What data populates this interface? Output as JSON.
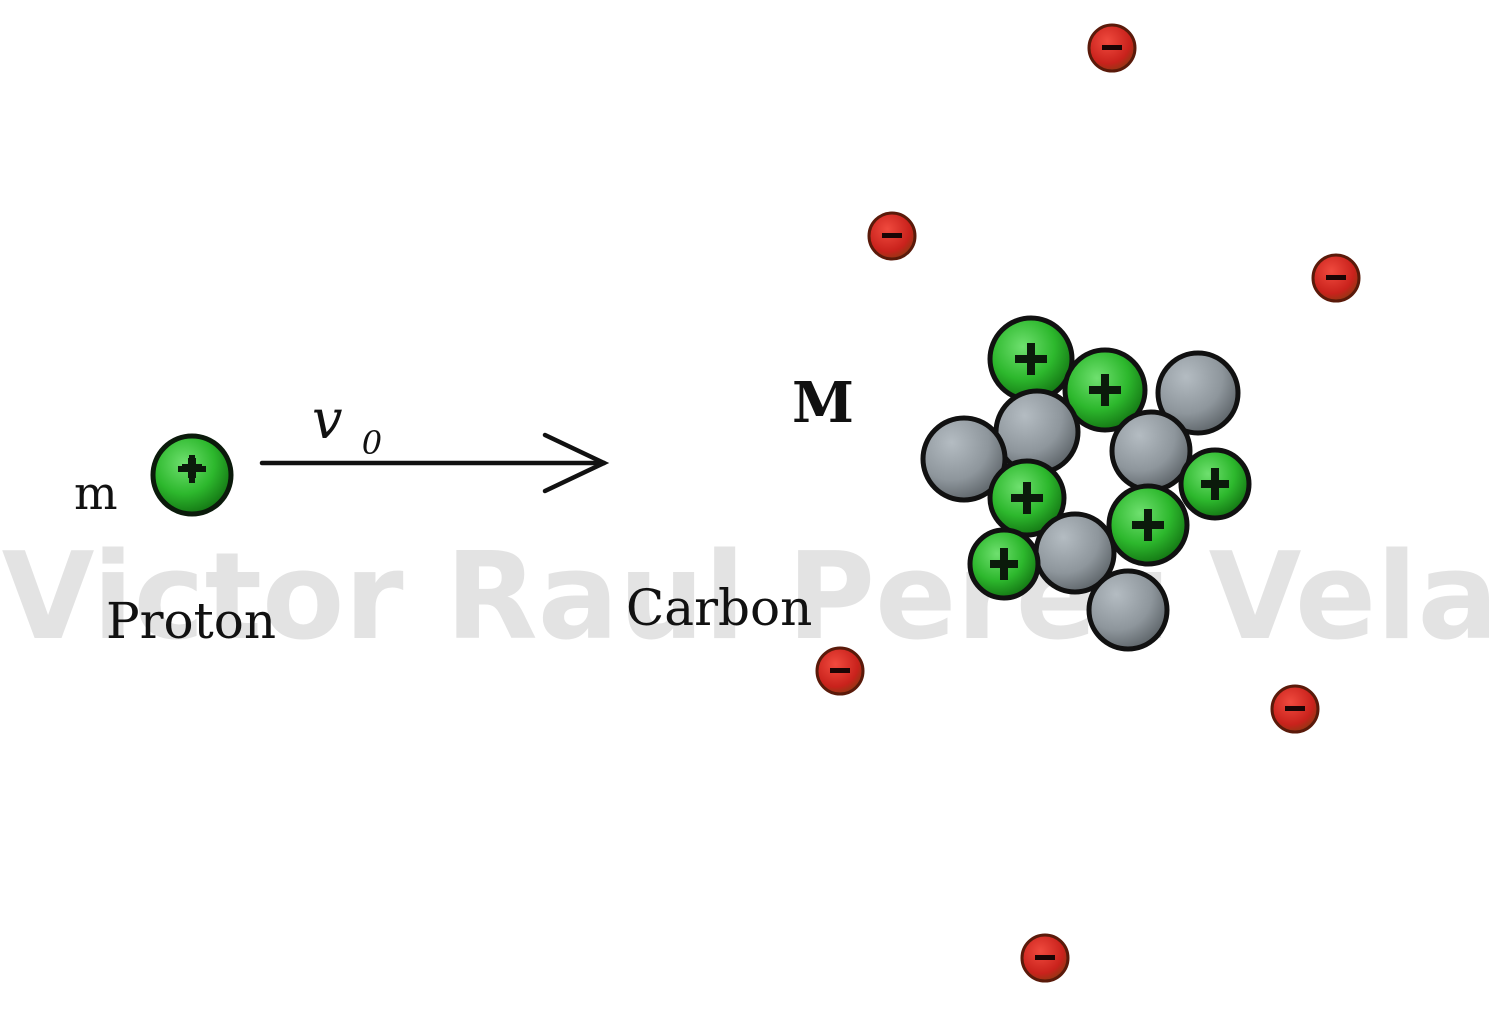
{
  "labels": {
    "proton_mass": "m",
    "velocity_main": "v",
    "velocity_sub": "0",
    "proton": "Proton",
    "carbon": "Carbon",
    "carbon_mass": "M"
  },
  "watermark": "Victor Raul Perez Vela",
  "colors": {
    "proton": "#2db82d",
    "proton_edge": "#0b3a0b",
    "neutron": "#8e969c",
    "electron": "#c9221c",
    "ink": "#111111"
  },
  "counts": {
    "nucleus_protons": 6,
    "nucleus_neutrons": 6,
    "electrons": 6
  },
  "icons": {
    "proton": "plus-sign",
    "electron": "minus-sign"
  }
}
